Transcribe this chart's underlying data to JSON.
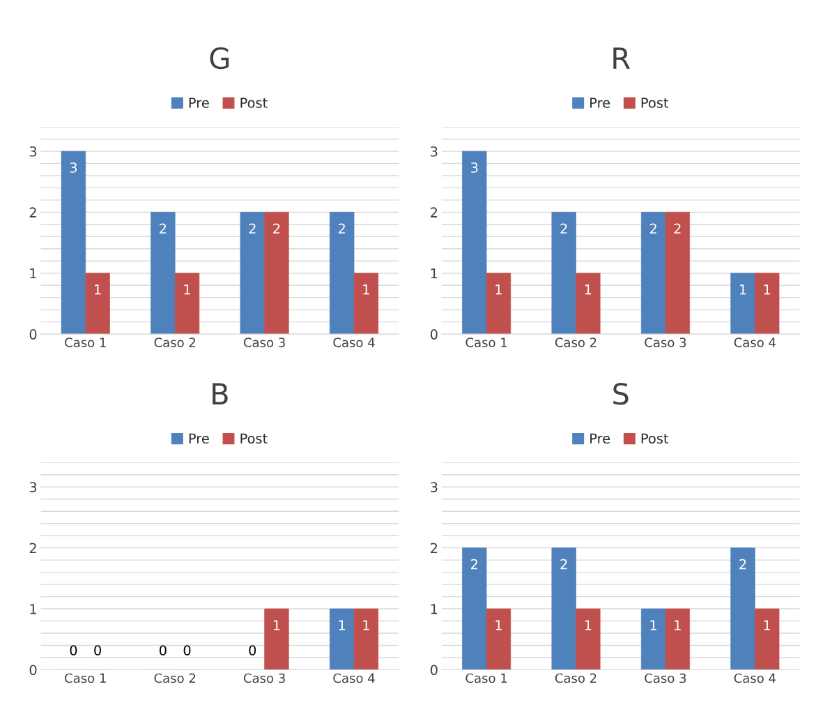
{
  "chart_data": [
    {
      "type": "bar",
      "title": "G",
      "categories": [
        "Caso 1",
        "Caso 2",
        "Caso 3",
        "Caso 4"
      ],
      "series": [
        {
          "name": "Pre",
          "color": "#4f81bd",
          "values": [
            3,
            2,
            2,
            2
          ]
        },
        {
          "name": "Post",
          "color": "#c0504d",
          "values": [
            1,
            1,
            2,
            1
          ]
        }
      ],
      "ylim": [
        0,
        3.4
      ],
      "yticks": [
        0,
        {
          "value": 0.2,
          "label": null
        },
        {
          "value": 0.4,
          "label": null
        },
        {
          "value": 0.6,
          "label": null
        },
        {
          "value": 0.8,
          "label": null
        },
        1,
        {
          "value": 1.2,
          "label": null
        },
        {
          "value": 1.4,
          "label": null
        },
        {
          "value": 1.6,
          "label": null
        },
        {
          "value": 1.8,
          "label": null
        },
        2,
        {
          "value": 2.2,
          "label": null
        },
        {
          "value": 2.4,
          "label": null
        },
        {
          "value": 2.6,
          "label": null
        },
        {
          "value": 2.8,
          "label": null
        },
        3,
        {
          "value": 3.2,
          "label": null
        },
        {
          "value": 3.4,
          "label": null
        }
      ],
      "grid": "y",
      "legend": "top",
      "data_labels": true
    },
    {
      "type": "bar",
      "title": "R",
      "categories": [
        "Caso 1",
        "Caso 2",
        "Caso 3",
        "Caso 4"
      ],
      "series": [
        {
          "name": "Pre",
          "color": "#4f81bd",
          "values": [
            3,
            2,
            2,
            1
          ]
        },
        {
          "name": "Post",
          "color": "#c0504d",
          "values": [
            1,
            1,
            2,
            1
          ]
        }
      ],
      "ylim": [
        0,
        3.4
      ],
      "yticks": [
        0,
        {
          "value": 0.2,
          "label": null
        },
        {
          "value": 0.4,
          "label": null
        },
        {
          "value": 0.6,
          "label": null
        },
        {
          "value": 0.8,
          "label": null
        },
        1,
        {
          "value": 1.2,
          "label": null
        },
        {
          "value": 1.4,
          "label": null
        },
        {
          "value": 1.6,
          "label": null
        },
        {
          "value": 1.8,
          "label": null
        },
        2,
        {
          "value": 2.2,
          "label": null
        },
        {
          "value": 2.4,
          "label": null
        },
        {
          "value": 2.6,
          "label": null
        },
        {
          "value": 2.8,
          "label": null
        },
        3,
        {
          "value": 3.2,
          "label": null
        },
        {
          "value": 3.4,
          "label": null
        }
      ],
      "grid": "y",
      "legend": "top",
      "data_labels": true
    },
    {
      "type": "bar",
      "title": "B",
      "categories": [
        "Caso 1",
        "Caso 2",
        "Caso 3",
        "Caso 4"
      ],
      "series": [
        {
          "name": "Pre",
          "color": "#4f81bd",
          "values": [
            0,
            0,
            0,
            1
          ]
        },
        {
          "name": "Post",
          "color": "#c0504d",
          "values": [
            0,
            0,
            1,
            1
          ]
        }
      ],
      "ylim": [
        0,
        3.4
      ],
      "yticks": [
        0,
        {
          "value": 0.2,
          "label": null
        },
        {
          "value": 0.4,
          "label": null
        },
        {
          "value": 0.6,
          "label": null
        },
        {
          "value": 0.8,
          "label": null
        },
        1,
        {
          "value": 1.2,
          "label": null
        },
        {
          "value": 1.4,
          "label": null
        },
        {
          "value": 1.6,
          "label": null
        },
        {
          "value": 1.8,
          "label": null
        },
        2,
        {
          "value": 2.2,
          "label": null
        },
        {
          "value": 2.4,
          "label": null
        },
        {
          "value": 2.6,
          "label": null
        },
        {
          "value": 2.8,
          "label": null
        },
        3,
        {
          "value": 3.2,
          "label": null
        },
        {
          "value": 3.4,
          "label": null
        }
      ],
      "grid": "y",
      "legend": "top",
      "data_labels": true
    },
    {
      "type": "bar",
      "title": "S",
      "categories": [
        "Caso 1",
        "Caso 2",
        "Caso 3",
        "Caso 4"
      ],
      "series": [
        {
          "name": "Pre",
          "color": "#4f81bd",
          "values": [
            2,
            2,
            1,
            2
          ]
        },
        {
          "name": "Post",
          "color": "#c0504d",
          "values": [
            1,
            1,
            1,
            1
          ]
        }
      ],
      "ylim": [
        0,
        3.4
      ],
      "yticks": [
        0,
        {
          "value": 0.2,
          "label": null
        },
        {
          "value": 0.4,
          "label": null
        },
        {
          "value": 0.6,
          "label": null
        },
        {
          "value": 0.8,
          "label": null
        },
        1,
        {
          "value": 1.2,
          "label": null
        },
        {
          "value": 1.4,
          "label": null
        },
        {
          "value": 1.6,
          "label": null
        },
        {
          "value": 1.8,
          "label": null
        },
        2,
        {
          "value": 2.2,
          "label": null
        },
        {
          "value": 2.4,
          "label": null
        },
        {
          "value": 2.6,
          "label": null
        },
        {
          "value": 2.8,
          "label": null
        },
        3,
        {
          "value": 3.2,
          "label": null
        },
        {
          "value": 3.4,
          "label": null
        }
      ],
      "grid": "y",
      "legend": "top",
      "data_labels": true
    }
  ]
}
